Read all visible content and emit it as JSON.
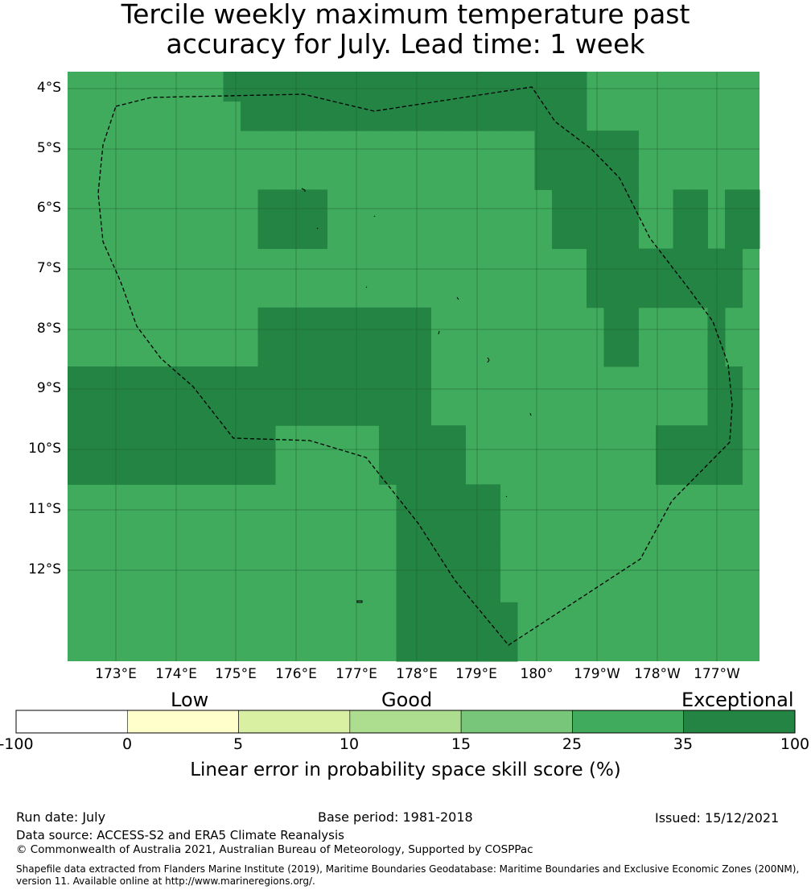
{
  "title": {
    "line1": "Tercile weekly maximum temperature past",
    "line2": "accuracy for July. Lead time: 1 week"
  },
  "lat_labels": [
    "4°S",
    "5°S",
    "6°S",
    "7°S",
    "8°S",
    "9°S",
    "10°S",
    "11°S",
    "12°S"
  ],
  "lon_labels": [
    "173°E",
    "174°E",
    "175°E",
    "176°E",
    "177°E",
    "178°E",
    "179°E",
    "180°",
    "179°W",
    "178°W",
    "177°W"
  ],
  "skill_colors": {
    "25-35": "#41ab5d",
    "35-100": "#238443"
  },
  "grid_cells": [
    "2222222220111111111111111111112222222222",
    "2222222222222222222222222223311112222222",
    "2222222222211112222222222222111112233233",
    "2222222222222222222222222222221111333332",
    "2222222222211111111112222222222112222322",
    "1111111111111113333332222222222222222332",
    "1111111111112222223333322222222222333332",
    "2222222222222222222333333222222222222222",
    "2222222222222222222333333222222222222222",
    "2222222222222222222333333322222222222222"
  ],
  "colorbar": {
    "categories": [
      "Low",
      "Good",
      "Exceptional"
    ],
    "ticks": [
      "-100",
      "0",
      "5",
      "10",
      "15",
      "25",
      "35",
      "100"
    ],
    "colors": [
      "#ffffff",
      "#ffffcc",
      "#d9f0a3",
      "#addd8e",
      "#78c679",
      "#41ab5d",
      "#238443"
    ],
    "label": "Linear error in probability space skill score (%)"
  },
  "footer": {
    "run_date": "Run date: July",
    "base_period": "Base period: 1981-2018",
    "issued": "Issued: 15/12/2021",
    "data_source": "Data source: ACCESS-S2 and ERA5 Climate Reanalysis",
    "copyright": "© Commonwealth of Australia 2021, Australian Bureau of Meteorology, Supported by COSPPac",
    "shapefile_1": "Shapefile data extracted from Flanders Marine Institute (2019), Maritime Boundaries Geodatabase: Maritime Boundaries and Exclusive Economic Zones (200NM),",
    "shapefile_2": "version 11. Available online at http://www.marineregions.org/."
  }
}
